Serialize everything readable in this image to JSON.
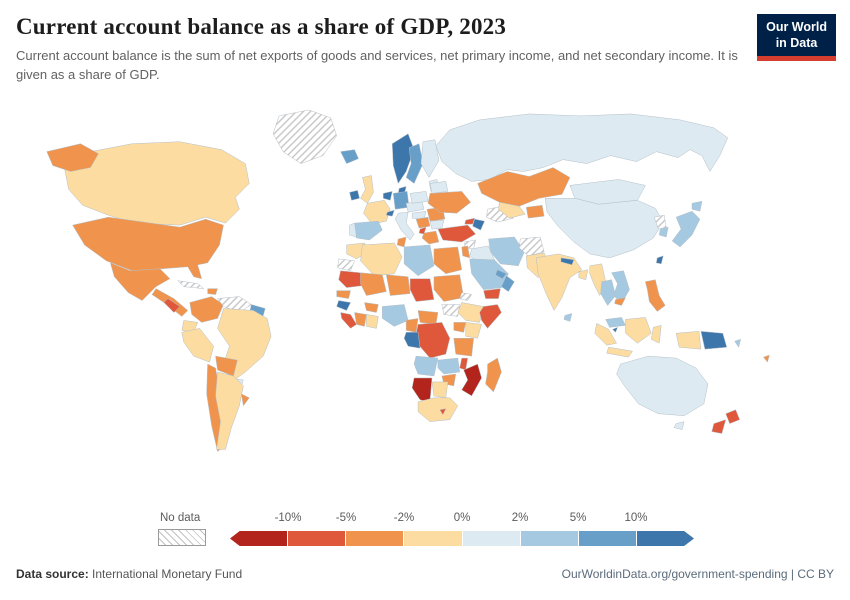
{
  "header": {
    "title": "Current account balance as a share of GDP, 2023",
    "subtitle": "Current account balance is the sum of net exports of goods and services, net primary income, and net secondary income. It is given as a share of GDP.",
    "logo_line1": "Our World",
    "logo_line2": "in Data"
  },
  "theme": {
    "logo_bg": "#002147",
    "logo_accent": "#d53e2e"
  },
  "footer": {
    "source_label": "Data source:",
    "source_value": "International Monetary Fund",
    "credit": "OurWorldinData.org/government-spending | CC BY"
  },
  "chart_data": {
    "type": "heatmap",
    "subtype": "choropleth-world-map",
    "title": "Current account balance as a share of GDP, 2023",
    "year": "2023",
    "unit": "% of GDP",
    "legend": {
      "no_data_label": "No data",
      "ticks": [
        "-10%",
        "-5%",
        "-2%",
        "0%",
        "2%",
        "5%",
        "10%"
      ],
      "bins": [
        {
          "id": "lt-10",
          "range": "less than -10%",
          "color": "#b2241c"
        },
        {
          "id": "n10-n5",
          "range": "-10% to -5%",
          "color": "#e0583b"
        },
        {
          "id": "n5-n2",
          "range": "-5% to -2%",
          "color": "#f0944d"
        },
        {
          "id": "n2-0",
          "range": "-2% to 0%",
          "color": "#fcdca0"
        },
        {
          "id": "0-2",
          "range": "0% to 2%",
          "color": "#ddeaf2"
        },
        {
          "id": "2-5",
          "range": "2% to 5%",
          "color": "#a5c9e1"
        },
        {
          "id": "5-10",
          "range": "5% to 10%",
          "color": "#689fc9"
        },
        {
          "id": "gt10",
          "range": "more than 10%",
          "color": "#3d76ab"
        },
        {
          "id": "nodata",
          "range": "No data",
          "color": "hatch"
        }
      ]
    },
    "entities": {
      "greenland": "nodata",
      "canada": "n2-0",
      "united-states": "n5-n2",
      "mexico": "n5-n2",
      "central-america": "n5-n2",
      "nicaragua-honduras": "n10-n5",
      "cuba": "nodata",
      "hispaniola": "n5-n2",
      "colombia": "n5-n2",
      "venezuela": "nodata",
      "guianas": "5-10",
      "ecuador": "n2-0",
      "peru": "n2-0",
      "brazil": "n2-0",
      "bolivia": "n5-n2",
      "paraguay": "0-2",
      "chile": "n5-n2",
      "argentina": "n2-0",
      "uruguay": "n5-n2",
      "iceland": "5-10",
      "ireland": "gt10",
      "united-kingdom": "n2-0",
      "norway": "gt10",
      "sweden": "5-10",
      "finland": "0-2",
      "baltics": "0-2",
      "denmark": "gt10",
      "netherlands": "gt10",
      "germany": "5-10",
      "france": "n2-0",
      "switzerland": "gt10",
      "spain": "2-5",
      "portugal": "0-2",
      "italy": "0-2",
      "austria-czechia": "0-2",
      "poland": "0-2",
      "hungary-croatia": "0-2",
      "serbia-bosnia": "n5-n2",
      "albania-montenegro": "n10-n5",
      "greece": "n5-n2",
      "romania": "n5-n2",
      "bulgaria": "0-2",
      "moldova": "n10-n5",
      "ukraine": "n5-n2",
      "belarus": "0-2",
      "russia": "0-2",
      "turkey": "n10-n5",
      "georgia": "n10-n5",
      "azerbaijan": "gt10",
      "syria": "nodata",
      "iraq": "0-2",
      "jordan-israel": "n5-n2",
      "saudi-arabia": "2-5",
      "yemen": "n10-n5",
      "oman": "5-10",
      "gulf-states": "5-10",
      "iran": "2-5",
      "afghanistan": "nodata",
      "pakistan": "n2-0",
      "kazakhstan": "n5-n2",
      "turkmenistan": "nodata",
      "uzbekistan": "n2-0",
      "kyrgyzstan-tajikistan": "n5-n2",
      "mongolia": "0-2",
      "china": "0-2",
      "india": "n2-0",
      "nepal": "gt10",
      "bangladesh": "n2-0",
      "sri-lanka": "2-5",
      "myanmar": "n2-0",
      "thailand": "2-5",
      "vietnam": "2-5",
      "cambodia": "n5-n2",
      "malaysia": "2-5",
      "singapore": "gt10",
      "indonesia": "n2-0",
      "papua-new-guinea": "gt10",
      "solomon-islands": "2-5",
      "fiji": "n5-n2",
      "philippines": "n5-n2",
      "taiwan": "gt10",
      "japan": "2-5",
      "south-korea": "2-5",
      "north-korea": "nodata",
      "morocco": "n2-0",
      "western-sahara": "nodata",
      "algeria": "n2-0",
      "tunisia": "n5-n2",
      "libya": "2-5",
      "egypt": "n5-n2",
      "mauritania": "n10-n5",
      "mali": "n5-n2",
      "niger": "n5-n2",
      "chad": "n10-n5",
      "sudan": "n5-n2",
      "eritrea-djibouti": "nodata",
      "senegal": "n5-n2",
      "guinea": "gt10",
      "sierra-leone-liberia": "n10-n5",
      "ivory-coast": "n5-n2",
      "ghana-togo-benin": "n2-0",
      "burkina-faso": "n5-n2",
      "nigeria": "2-5",
      "cameroon": "n5-n2",
      "central-african-republic": "n5-n2",
      "south-sudan": "nodata",
      "ethiopia": "n2-0",
      "somalia": "n10-n5",
      "kenya": "n2-0",
      "uganda-rwanda": "n5-n2",
      "dr-congo": "n10-n5",
      "gabon-congo": "gt10",
      "tanzania": "n5-n2",
      "angola": "2-5",
      "zambia": "2-5",
      "malawi": "n10-n5",
      "mozambique": "lt-10",
      "zimbabwe": "n5-n2",
      "madagascar": "n5-n2",
      "namibia": "lt-10",
      "botswana": "n2-0",
      "south-africa": "n2-0",
      "lesotho": "n10-n5",
      "australia": "0-2",
      "new-zealand": "n10-n5"
    }
  }
}
